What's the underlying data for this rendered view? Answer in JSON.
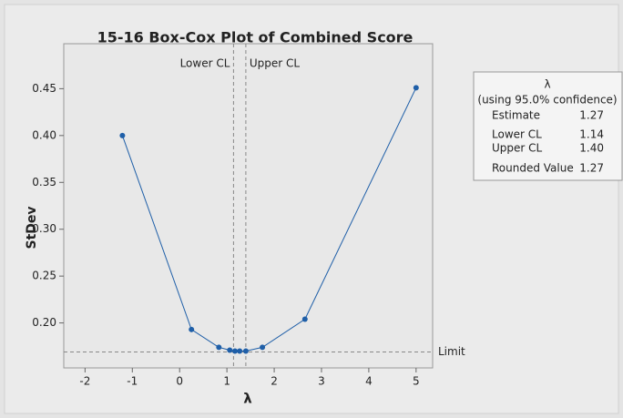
{
  "chart_data": {
    "type": "line",
    "title": "15-16 Box-Cox Plot of Combined Score",
    "x_label": "λ",
    "y_label": "StDev",
    "x": [
      -1.21,
      0.25,
      0.83,
      1.06,
      1.17,
      1.27,
      1.4,
      1.75,
      2.65,
      5.0
    ],
    "series": [
      {
        "name": "StDev",
        "color": "#1f5fa8",
        "values": [
          0.4,
          0.193,
          0.174,
          0.171,
          0.17,
          0.17,
          0.17,
          0.174,
          0.204,
          0.451
        ]
      }
    ],
    "xlim": [
      -2.45,
      5.35
    ],
    "ylim": [
      0.152,
      0.498
    ],
    "xticks": [
      -2,
      -1,
      0,
      1,
      2,
      3,
      4,
      5
    ],
    "yticks": [
      {
        "value": 0.2,
        "label": "0.20"
      },
      {
        "value": 0.25,
        "label": "0.25"
      },
      {
        "value": 0.3,
        "label": "0.30"
      },
      {
        "value": 0.35,
        "label": "0.35"
      },
      {
        "value": 0.4,
        "label": "0.40"
      },
      {
        "value": 0.45,
        "label": "0.45"
      }
    ],
    "vlines": [
      {
        "value": 1.14,
        "label": "Lower CL"
      },
      {
        "value": 1.4,
        "label": "Upper CL"
      }
    ],
    "hline": {
      "value": 0.169,
      "label": "Limit"
    },
    "info": {
      "title": "λ",
      "subtitle": "(using 95.0% confidence)",
      "rows": [
        [
          "Estimate",
          "1.27"
        ],
        [
          "Lower CL",
          "1.14"
        ],
        [
          "Upper CL",
          "1.40"
        ],
        [
          "Rounded Value",
          "1.27"
        ]
      ]
    }
  }
}
